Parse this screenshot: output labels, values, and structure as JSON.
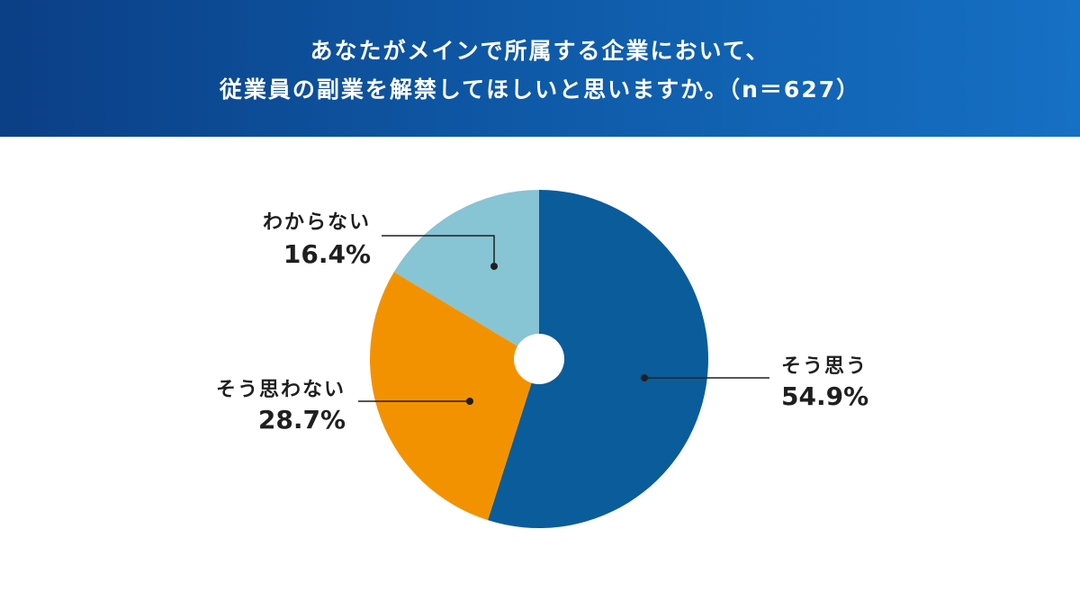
{
  "header": {
    "title_line1": "あなたがメインで所属する企業において、",
    "title_line2": "従業員の副業を解禁してほしいと思いますか。（n＝627）",
    "background_colors": [
      "#0b3f86",
      "#1670c4"
    ]
  },
  "chart_data": {
    "type": "pie",
    "title": "あなたがメインで所属する企業において、従業員の副業を解禁してほしいと思いますか。（n＝627）",
    "n": 627,
    "start_angle_deg": 0,
    "direction": "clockwise",
    "slices": [
      {
        "label": "そう思う",
        "value": 54.9,
        "value_label": "54.9%",
        "color": "#0b5c9b"
      },
      {
        "label": "そう思わない",
        "value": 28.7,
        "value_label": "28.7%",
        "color": "#f39200"
      },
      {
        "label": "わからない",
        "value": 16.4,
        "value_label": "16.4%",
        "color": "#87c4d4"
      }
    ],
    "legend": "none",
    "labels_style": "callout-lines"
  }
}
